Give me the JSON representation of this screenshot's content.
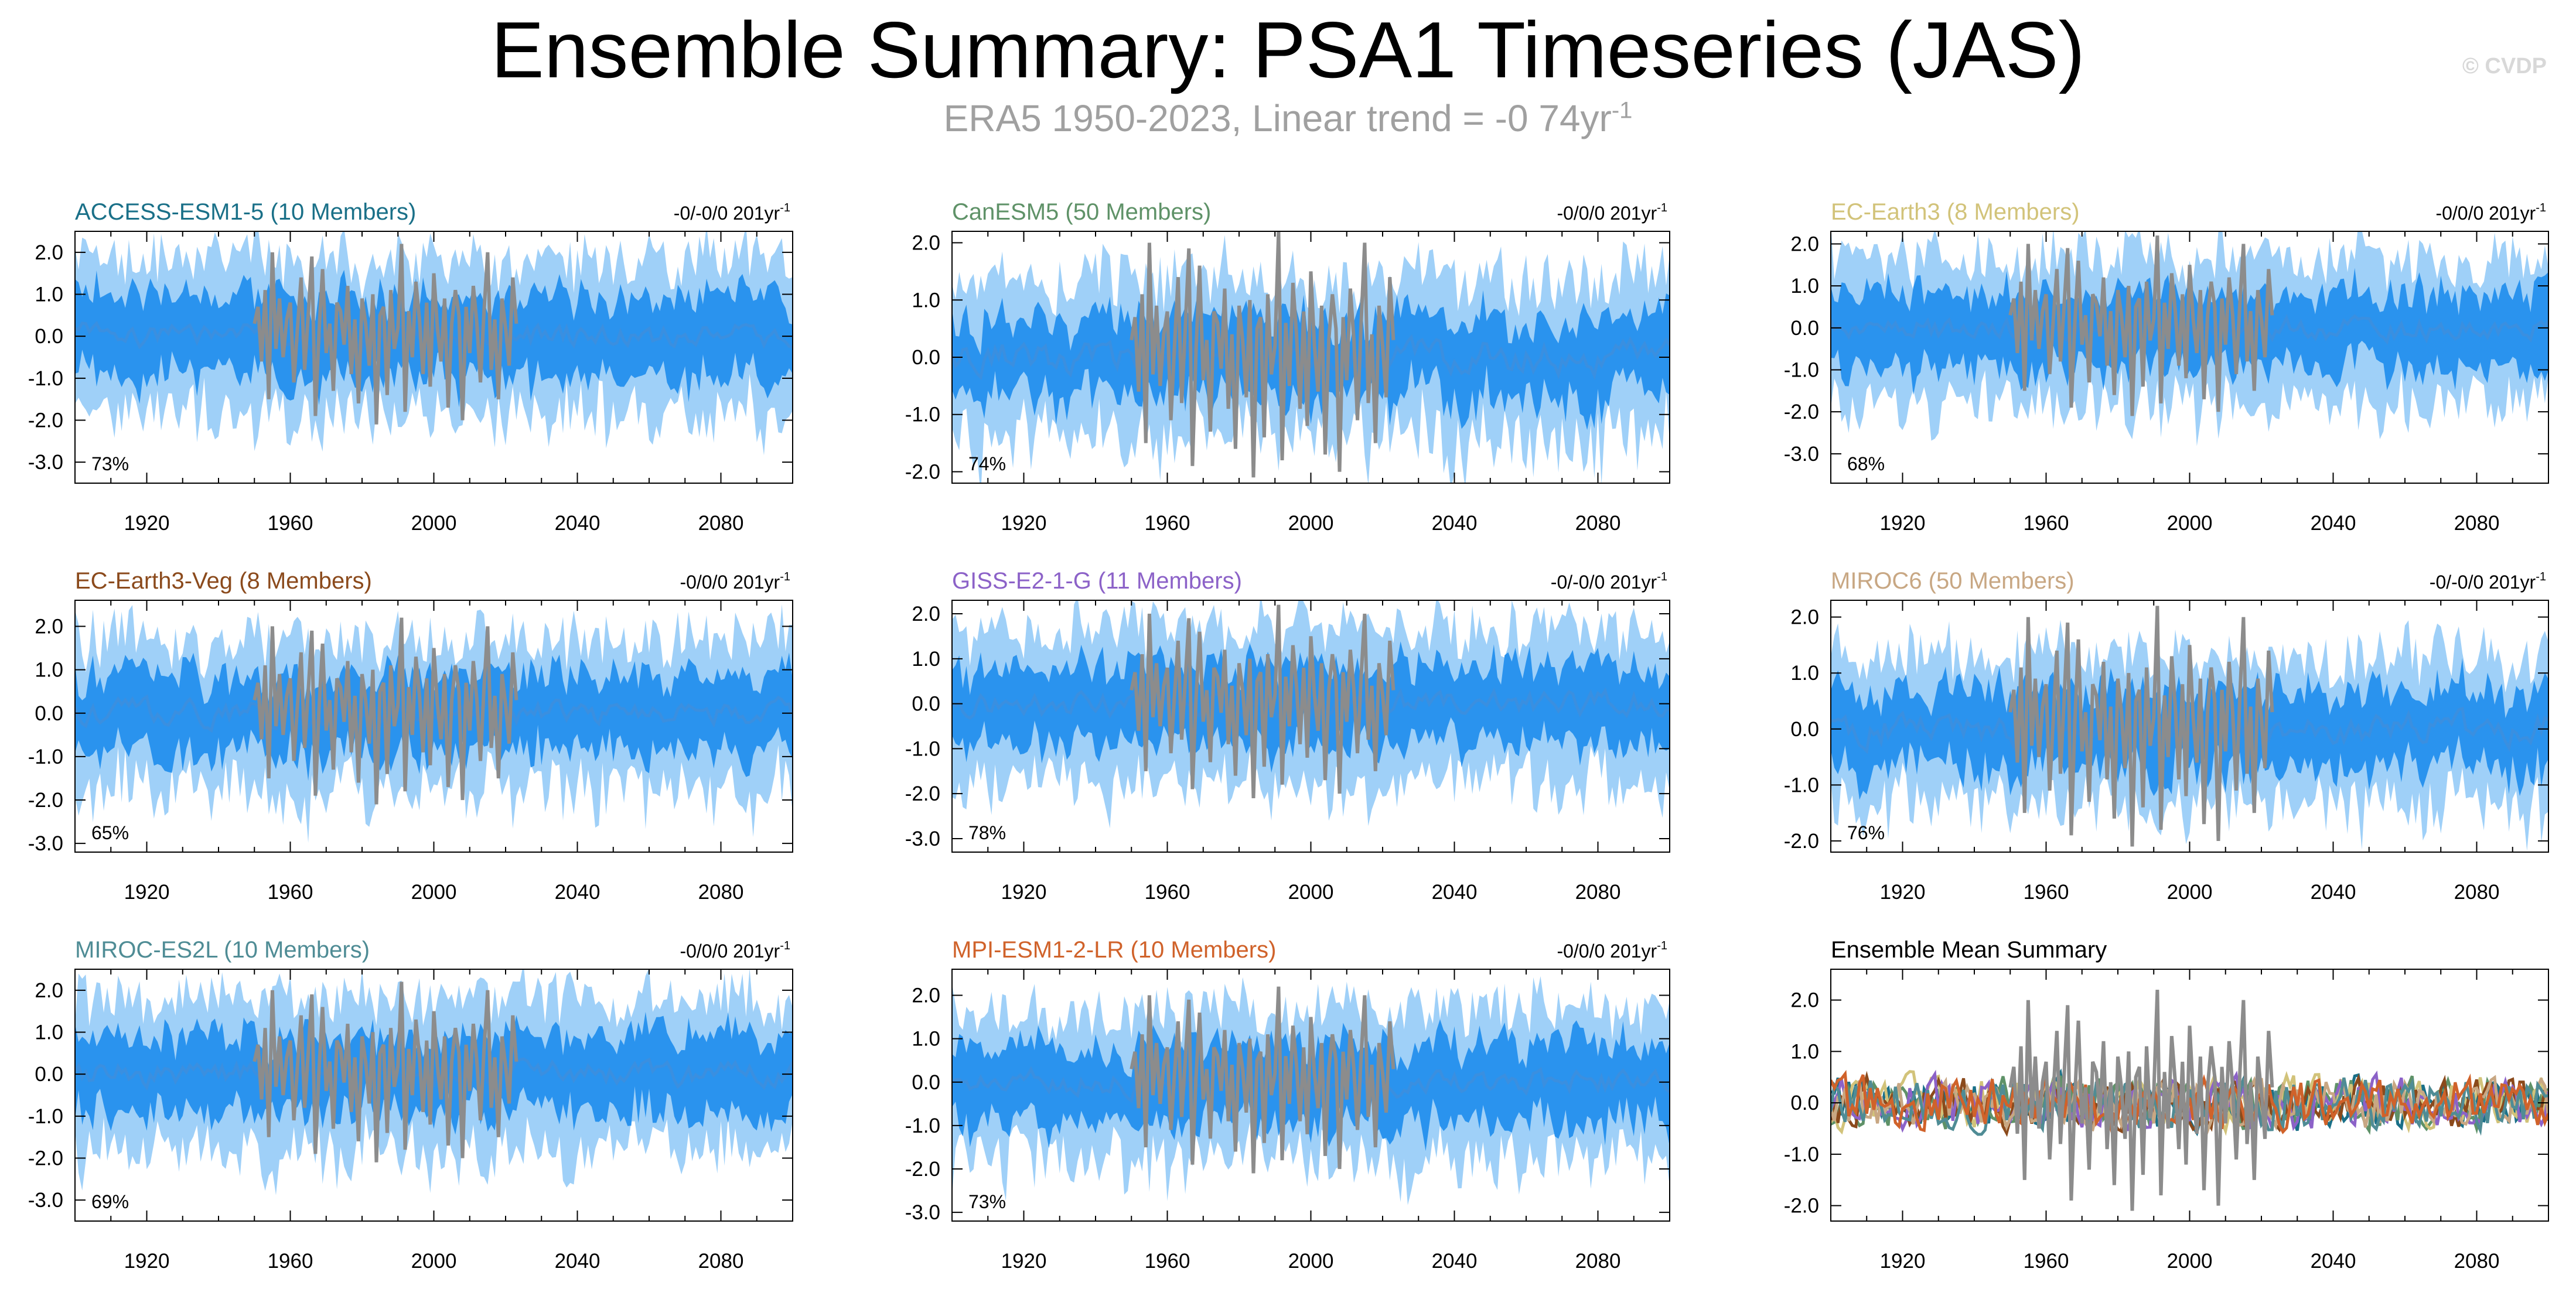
{
  "title": "Ensemble Summary: PSA1 Timeseries (JAS)",
  "subtitle": {
    "text": "ERA5 1950-2023, Linear trend = -0 74yr",
    "superscript": "-1"
  },
  "credit": "© CVDP",
  "colors": {
    "observed": "#8c8c8c",
    "band_outer": "#9fd0f8",
    "band_inner": "#2a93ee",
    "ensemble_mean": "#3a8fe0"
  },
  "x_ticks": [
    "1920",
    "1960",
    "2000",
    "2040",
    "2080"
  ],
  "chart_data": [
    {
      "type": "area",
      "id": "access",
      "title": "ACCESS-ESM1-5 (10 Members)",
      "title_color": "#1a7088",
      "trend": "-0/-0/0 201yr",
      "trend_sup": "-1",
      "percent": "73%",
      "xlim": [
        1900,
        2100
      ],
      "ylim": [
        -3.5,
        2.5
      ],
      "y_ticks": [
        2,
        1,
        0,
        -1,
        -2,
        -3
      ],
      "y_tick_labels": [
        "2.0",
        "1.0",
        "0.0",
        "-1.0",
        "-2.0",
        "-3.0"
      ],
      "seed": 11,
      "outer_spread": 1.8,
      "inner_spread": 0.95
    },
    {
      "type": "area",
      "id": "canesm5",
      "title": "CanESM5 (50 Members)",
      "title_color": "#5f9268",
      "trend": "-0/0/0 201yr",
      "trend_sup": "-1",
      "percent": "74%",
      "xlim": [
        1900,
        2100
      ],
      "ylim": [
        -2.2,
        2.2
      ],
      "y_ticks": [
        2,
        1,
        0,
        -1,
        -2
      ],
      "y_tick_labels": [
        "2.0",
        "1.0",
        "0.0",
        "-1.0",
        "-2.0"
      ],
      "seed": 23,
      "outer_spread": 1.35,
      "inner_spread": 0.7
    },
    {
      "type": "area",
      "id": "ecearth3",
      "title": "EC-Earth3 (8 Members)",
      "title_color": "#d2c37a",
      "trend": "-0/0/0 201yr",
      "trend_sup": "-1",
      "percent": "68%",
      "xlim": [
        1900,
        2100
      ],
      "ylim": [
        -3.7,
        2.3
      ],
      "y_ticks": [
        2,
        1,
        0,
        -1,
        -2,
        -3
      ],
      "y_tick_labels": [
        "2.0",
        "1.0",
        "0.0",
        "-1.0",
        "-2.0",
        "-3.0"
      ],
      "seed": 37,
      "outer_spread": 1.7,
      "inner_spread": 0.9
    },
    {
      "type": "area",
      "id": "ecearth3veg",
      "title": "EC-Earth3-Veg (8 Members)",
      "title_color": "#8b4a1c",
      "trend": "-0/0/0 201yr",
      "trend_sup": "-1",
      "percent": "65%",
      "xlim": [
        1900,
        2100
      ],
      "ylim": [
        -3.2,
        2.6
      ],
      "y_ticks": [
        2,
        1,
        0,
        -1,
        -2,
        -3
      ],
      "y_tick_labels": [
        "2.0",
        "1.0",
        "0.0",
        "-1.0",
        "-2.0",
        "-3.0"
      ],
      "seed": 41,
      "outer_spread": 1.7,
      "inner_spread": 0.9
    },
    {
      "type": "area",
      "id": "giss",
      "title": "GISS-E2-1-G (11 Members)",
      "title_color": "#8c62c8",
      "trend": "-0/-0/0 201yr",
      "trend_sup": "-1",
      "percent": "78%",
      "xlim": [
        1900,
        2100
      ],
      "ylim": [
        -3.3,
        2.3
      ],
      "y_ticks": [
        2,
        1,
        0,
        -1,
        -2,
        -3
      ],
      "y_tick_labels": [
        "2.0",
        "1.0",
        "0.0",
        "-1.0",
        "-2.0",
        "-3.0"
      ],
      "seed": 53,
      "outer_spread": 1.65,
      "inner_spread": 0.85
    },
    {
      "type": "area",
      "id": "miroc6",
      "title": "MIROC6 (50 Members)",
      "title_color": "#c8a783",
      "trend": "-0/-0/0 201yr",
      "trend_sup": "-1",
      "percent": "76%",
      "xlim": [
        1900,
        2100
      ],
      "ylim": [
        -2.2,
        2.3
      ],
      "y_ticks": [
        2,
        1,
        0,
        -1,
        -2
      ],
      "y_tick_labels": [
        "2.0",
        "1.0",
        "0.0",
        "-1.0",
        "-2.0"
      ],
      "seed": 67,
      "outer_spread": 1.3,
      "inner_spread": 0.7
    },
    {
      "type": "area",
      "id": "mirocesl",
      "title": "MIROC-ES2L (10 Members)",
      "title_color": "#4f8c95",
      "trend": "-0/0/0 201yr",
      "trend_sup": "-1",
      "percent": "69%",
      "xlim": [
        1900,
        2100
      ],
      "ylim": [
        -3.5,
        2.5
      ],
      "y_ticks": [
        2,
        1,
        0,
        -1,
        -2,
        -3
      ],
      "y_tick_labels": [
        "2.0",
        "1.0",
        "0.0",
        "-1.0",
        "-2.0",
        "-3.0"
      ],
      "seed": 79,
      "outer_spread": 1.75,
      "inner_spread": 0.9
    },
    {
      "type": "area",
      "id": "mpi",
      "title": "MPI-ESM1-2-LR (10 Members)",
      "title_color": "#d0622a",
      "trend": "-0/0/0 201yr",
      "trend_sup": "-1",
      "percent": "73%",
      "xlim": [
        1900,
        2100
      ],
      "ylim": [
        -3.2,
        2.6
      ],
      "y_ticks": [
        2,
        1,
        0,
        -1,
        -2,
        -3
      ],
      "y_tick_labels": [
        "2.0",
        "1.0",
        "0.0",
        "-1.0",
        "-2.0",
        "-3.0"
      ],
      "seed": 83,
      "outer_spread": 1.7,
      "inner_spread": 0.9
    },
    {
      "type": "line",
      "id": "summary",
      "title": "Ensemble Mean Summary",
      "title_color": "#000000",
      "trend": "",
      "trend_sup": "",
      "percent": "",
      "xlim": [
        1900,
        2100
      ],
      "ylim": [
        -2.3,
        2.6
      ],
      "y_ticks": [
        2,
        1,
        0,
        -1,
        -2
      ],
      "y_tick_labels": [
        "2.0",
        "1.0",
        "0.0",
        "-1.0",
        "-2.0"
      ],
      "seed": 97,
      "series": [
        {
          "color": "#1a7088"
        },
        {
          "color": "#5f9268"
        },
        {
          "color": "#d2c37a"
        },
        {
          "color": "#8b4a1c"
        },
        {
          "color": "#8c62c8"
        },
        {
          "color": "#c8a783"
        },
        {
          "color": "#4f8c95"
        },
        {
          "color": "#d0622a"
        }
      ]
    }
  ],
  "observed": {
    "x": [
      1950,
      1951,
      1952,
      1953,
      1954,
      1955,
      1956,
      1957,
      1958,
      1959,
      1960,
      1961,
      1962,
      1963,
      1964,
      1965,
      1966,
      1967,
      1968,
      1969,
      1970,
      1971,
      1972,
      1973,
      1974,
      1975,
      1976,
      1977,
      1978,
      1979,
      1980,
      1981,
      1982,
      1983,
      1984,
      1985,
      1986,
      1987,
      1988,
      1989,
      1990,
      1991,
      1992,
      1993,
      1994,
      1995,
      1996,
      1997,
      1998,
      1999,
      2000,
      2001,
      2002,
      2003,
      2004,
      2005,
      2006,
      2007,
      2008,
      2009,
      2010,
      2011,
      2012,
      2013,
      2014,
      2015,
      2016,
      2017,
      2018,
      2019,
      2020,
      2021,
      2022,
      2023
    ],
    "values": [
      0.3,
      0.7,
      -0.6,
      1.1,
      -1.5,
      2.0,
      -0.3,
      0.9,
      -0.5,
      0.4,
      0.8,
      -1.1,
      0.2,
      1.4,
      -0.8,
      0.5,
      1.9,
      -1.9,
      0.1,
      1.6,
      -0.4,
      0.3,
      -1.3,
      0.8,
      0.6,
      -0.2,
      1.2,
      -0.9,
      0.4,
      -1.6,
      0.9,
      0.3,
      -0.7,
      1.0,
      -2.1,
      0.5,
      0.7,
      -1.4,
      1.1,
      -0.3,
      0.2,
      2.2,
      -1.8,
      0.6,
      -0.5,
      1.3,
      0.4,
      -0.9,
      0.8,
      -1.2,
      1.5,
      0.2,
      -0.6,
      0.9,
      -1.7,
      0.3,
      1.1,
      0.5,
      -2.0,
      0.7,
      -0.4,
      1.2,
      0.3,
      -1.1,
      0.6,
      2.0,
      -0.8,
      0.4,
      -1.5,
      0.9,
      0.2,
      -0.7,
      1.4,
      0.3
    ]
  }
}
